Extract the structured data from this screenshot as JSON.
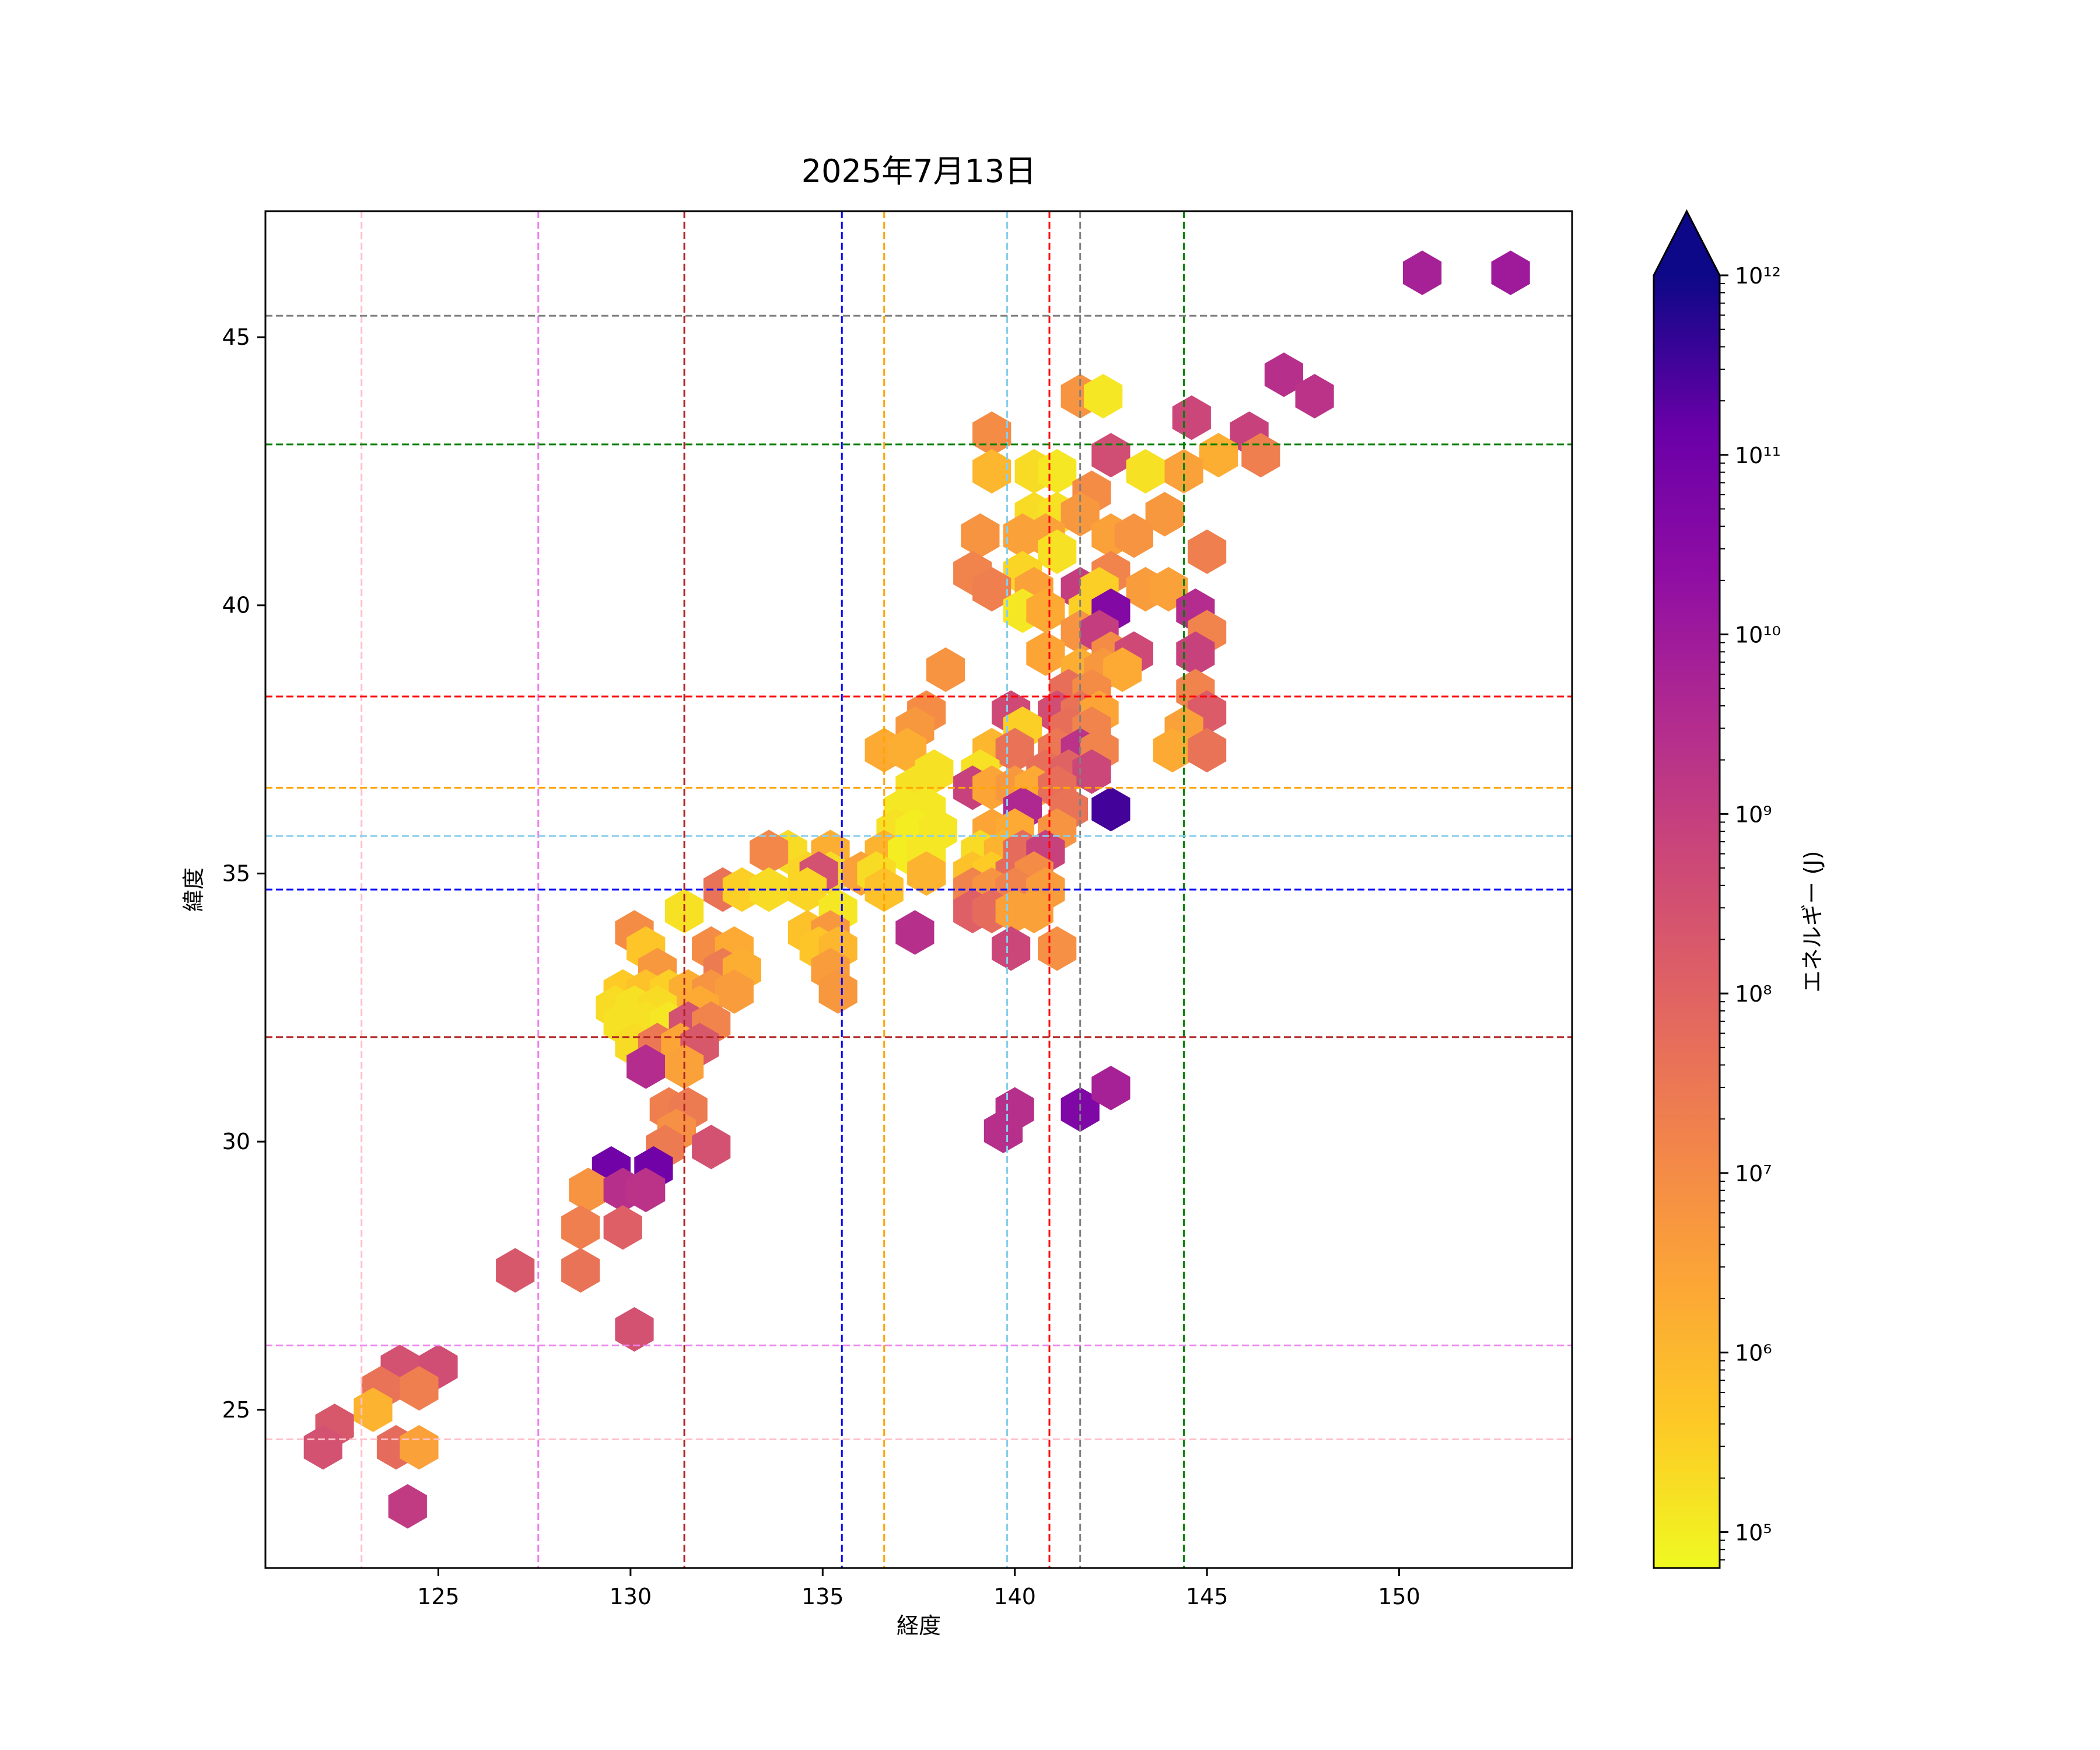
{
  "chart_data": {
    "type": "hexbin",
    "title": "2025年7月13日",
    "xlabel": "経度",
    "ylabel": "緯度",
    "xlim": [
      120.5,
      154.5
    ],
    "ylim": [
      22.05,
      47.35
    ],
    "xticks": [
      125,
      130,
      135,
      140,
      145,
      150
    ],
    "yticks": [
      25,
      30,
      35,
      40,
      45
    ],
    "colorbar": {
      "label": "エネルギー (J)",
      "scale": "log",
      "range_exp": [
        4.8,
        12.0
      ],
      "extend": "max",
      "ticks": [
        {
          "exp": 5,
          "label": "10⁵"
        },
        {
          "exp": 6,
          "label": "10⁶"
        },
        {
          "exp": 7,
          "label": "10⁷"
        },
        {
          "exp": 8,
          "label": "10⁸"
        },
        {
          "exp": 9,
          "label": "10⁹"
        },
        {
          "exp": 10,
          "label": "10¹⁰"
        },
        {
          "exp": 11,
          "label": "10¹¹"
        },
        {
          "exp": 12,
          "label": "10¹²"
        }
      ]
    },
    "reference_lines": {
      "vertical": [
        {
          "x": 123.0,
          "color": "#ffc0cb"
        },
        {
          "x": 127.6,
          "color": "#ee82ee"
        },
        {
          "x": 131.4,
          "color": "#b22222"
        },
        {
          "x": 135.5,
          "color": "#0000ff"
        },
        {
          "x": 136.6,
          "color": "#ffa500"
        },
        {
          "x": 139.8,
          "color": "#87ceeb"
        },
        {
          "x": 140.9,
          "color": "#ff0000"
        },
        {
          "x": 141.7,
          "color": "#808080"
        },
        {
          "x": 144.4,
          "color": "#008000"
        }
      ],
      "horizontal": [
        {
          "y": 45.4,
          "color": "#808080"
        },
        {
          "y": 43.0,
          "color": "#008000"
        },
        {
          "y": 38.3,
          "color": "#ff0000"
        },
        {
          "y": 36.6,
          "color": "#ffa500"
        },
        {
          "y": 35.7,
          "color": "#87ceeb"
        },
        {
          "y": 34.7,
          "color": "#0000ff"
        },
        {
          "y": 31.95,
          "color": "#b22222"
        },
        {
          "y": 26.2,
          "color": "#ee82ee"
        },
        {
          "y": 24.45,
          "color": "#ffc0cb"
        }
      ]
    },
    "hexbins": [
      [
        150.6,
        46.2,
        9.8
      ],
      [
        152.9,
        46.2,
        10.0
      ],
      [
        147.0,
        44.3,
        9.4
      ],
      [
        147.8,
        43.9,
        9.3
      ],
      [
        141.7,
        43.9,
        6.8
      ],
      [
        142.3,
        43.9,
        5.1
      ],
      [
        144.6,
        43.5,
        8.8
      ],
      [
        146.1,
        43.2,
        8.9
      ],
      [
        139.4,
        43.2,
        7.0
      ],
      [
        142.5,
        42.8,
        8.6
      ],
      [
        145.3,
        42.8,
        6.2
      ],
      [
        146.4,
        42.8,
        7.3
      ],
      [
        139.4,
        42.5,
        6.0
      ],
      [
        140.5,
        42.5,
        5.3
      ],
      [
        141.1,
        42.5,
        5.1
      ],
      [
        143.4,
        42.5,
        5.2
      ],
      [
        144.4,
        42.5,
        6.5
      ],
      [
        142.0,
        42.1,
        7.0
      ],
      [
        140.5,
        41.7,
        5.3
      ],
      [
        141.1,
        41.7,
        5.2
      ],
      [
        141.7,
        41.7,
        6.7
      ],
      [
        143.9,
        41.7,
        6.7
      ],
      [
        139.1,
        41.3,
        6.8
      ],
      [
        140.2,
        41.3,
        6.5
      ],
      [
        140.8,
        41.3,
        6.5
      ],
      [
        142.5,
        41.3,
        6.5
      ],
      [
        143.1,
        41.3,
        6.8
      ],
      [
        141.1,
        41.0,
        5.2
      ],
      [
        145.0,
        41.0,
        7.3
      ],
      [
        138.9,
        40.6,
        7.2
      ],
      [
        140.2,
        40.6,
        5.4
      ],
      [
        142.5,
        40.6,
        7.2
      ],
      [
        139.4,
        40.3,
        7.3
      ],
      [
        140.5,
        40.3,
        6.5
      ],
      [
        141.7,
        40.3,
        9.0
      ],
      [
        142.2,
        40.3,
        5.5
      ],
      [
        143.4,
        40.3,
        6.6
      ],
      [
        144.0,
        40.3,
        6.5
      ],
      [
        140.2,
        39.9,
        5.1
      ],
      [
        140.8,
        39.9,
        6.3
      ],
      [
        141.9,
        39.9,
        5.5
      ],
      [
        142.5,
        39.9,
        10.6
      ],
      [
        144.7,
        39.9,
        9.5
      ],
      [
        141.7,
        39.5,
        6.8
      ],
      [
        142.2,
        39.5,
        9.0
      ],
      [
        145.0,
        39.5,
        7.2
      ],
      [
        140.8,
        39.1,
        6.4
      ],
      [
        142.5,
        39.1,
        7.0
      ],
      [
        143.1,
        39.1,
        8.7
      ],
      [
        144.7,
        39.1,
        8.9
      ],
      [
        138.2,
        38.8,
        6.8
      ],
      [
        141.7,
        38.8,
        6.2
      ],
      [
        142.3,
        38.8,
        6.7
      ],
      [
        142.8,
        38.8,
        6.3
      ],
      [
        141.4,
        38.4,
        7.7
      ],
      [
        142.0,
        38.4,
        7.0
      ],
      [
        144.7,
        38.4,
        7.2
      ],
      [
        137.7,
        38.0,
        7.0
      ],
      [
        139.9,
        38.0,
        8.7
      ],
      [
        141.1,
        38.0,
        8.6
      ],
      [
        141.7,
        38.0,
        7.6
      ],
      [
        142.2,
        38.0,
        6.4
      ],
      [
        145.0,
        38.0,
        8.2
      ],
      [
        137.4,
        37.7,
        6.7
      ],
      [
        140.2,
        37.7,
        5.5
      ],
      [
        141.4,
        37.7,
        7.7
      ],
      [
        142.0,
        37.7,
        7.2
      ],
      [
        144.4,
        37.7,
        6.5
      ],
      [
        136.6,
        37.3,
        6.3
      ],
      [
        137.2,
        37.3,
        6.2
      ],
      [
        139.4,
        37.3,
        6.0
      ],
      [
        140.0,
        37.3,
        7.6
      ],
      [
        141.1,
        37.3,
        7.5
      ],
      [
        141.7,
        37.3,
        9.3
      ],
      [
        142.2,
        37.3,
        7.2
      ],
      [
        144.1,
        37.3,
        6.3
      ],
      [
        145.0,
        37.3,
        7.6
      ],
      [
        137.9,
        36.9,
        5.2
      ],
      [
        139.1,
        36.9,
        5.2
      ],
      [
        140.8,
        36.9,
        7.7
      ],
      [
        141.4,
        36.9,
        8.0
      ],
      [
        142.0,
        36.9,
        8.8
      ],
      [
        137.4,
        36.6,
        5.2
      ],
      [
        138.9,
        36.6,
        8.9
      ],
      [
        139.4,
        36.6,
        6.4
      ],
      [
        140.0,
        36.6,
        6.7
      ],
      [
        140.5,
        36.6,
        6.3
      ],
      [
        141.1,
        36.6,
        7.7
      ],
      [
        137.1,
        36.2,
        5.1
      ],
      [
        137.7,
        36.2,
        5.1
      ],
      [
        140.2,
        36.2,
        9.6
      ],
      [
        141.4,
        36.2,
        7.6
      ],
      [
        142.5,
        36.2,
        11.5
      ],
      [
        136.9,
        35.8,
        5.2
      ],
      [
        137.4,
        35.8,
        5.0
      ],
      [
        138.0,
        35.8,
        5.1
      ],
      [
        139.4,
        35.8,
        6.4
      ],
      [
        140.0,
        35.8,
        6.3
      ],
      [
        141.1,
        35.8,
        6.8
      ],
      [
        134.1,
        35.4,
        5.3
      ],
      [
        135.2,
        35.4,
        6.2
      ],
      [
        136.6,
        35.4,
        6.1
      ],
      [
        137.2,
        35.4,
        5.0
      ],
      [
        137.7,
        35.4,
        5.1
      ],
      [
        139.1,
        35.4,
        5.3
      ],
      [
        139.7,
        35.4,
        6.1
      ],
      [
        140.2,
        35.4,
        7.8
      ],
      [
        140.8,
        35.4,
        8.9
      ],
      [
        133.6,
        35.4,
        7.1
      ],
      [
        134.6,
        35.0,
        5.4
      ],
      [
        135.2,
        35.0,
        5.3
      ],
      [
        134.9,
        35.0,
        8.5
      ],
      [
        136.0,
        35.0,
        6.5
      ],
      [
        136.4,
        35.0,
        5.3
      ],
      [
        137.7,
        35.0,
        6.1
      ],
      [
        138.9,
        35.0,
        5.8
      ],
      [
        139.4,
        35.0,
        5.6
      ],
      [
        140.0,
        35.0,
        7.8
      ],
      [
        140.5,
        35.0,
        7.0
      ],
      [
        132.4,
        34.7,
        7.6
      ],
      [
        132.9,
        34.7,
        5.5
      ],
      [
        133.6,
        34.7,
        5.3
      ],
      [
        134.6,
        34.7,
        5.4
      ],
      [
        136.6,
        34.7,
        5.8
      ],
      [
        138.9,
        34.7,
        7.2
      ],
      [
        139.4,
        34.7,
        6.8
      ],
      [
        140.0,
        34.7,
        7.2
      ],
      [
        140.8,
        34.7,
        6.6
      ],
      [
        131.4,
        34.3,
        5.2
      ],
      [
        135.4,
        34.3,
        5.1
      ],
      [
        138.9,
        34.3,
        8.1
      ],
      [
        139.4,
        34.3,
        7.8
      ],
      [
        140.0,
        34.3,
        6.5
      ],
      [
        140.5,
        34.3,
        6.5
      ],
      [
        130.1,
        33.9,
        7.0
      ],
      [
        134.6,
        33.9,
        5.8
      ],
      [
        135.2,
        33.9,
        6.7
      ],
      [
        137.4,
        33.9,
        9.4
      ],
      [
        130.4,
        33.6,
        5.7
      ],
      [
        132.1,
        33.6,
        7.0
      ],
      [
        132.7,
        33.6,
        6.3
      ],
      [
        134.9,
        33.6,
        5.7
      ],
      [
        135.4,
        33.6,
        6.0
      ],
      [
        139.9,
        33.6,
        8.8
      ],
      [
        141.1,
        33.6,
        6.9
      ],
      [
        130.7,
        33.2,
        6.7
      ],
      [
        132.4,
        33.2,
        7.4
      ],
      [
        132.9,
        33.2,
        6.2
      ],
      [
        135.2,
        33.2,
        6.6
      ],
      [
        129.8,
        32.8,
        5.6
      ],
      [
        130.4,
        32.8,
        5.8
      ],
      [
        131.0,
        32.8,
        5.5
      ],
      [
        131.5,
        32.8,
        6.2
      ],
      [
        132.1,
        32.8,
        6.8
      ],
      [
        132.7,
        32.8,
        6.6
      ],
      [
        135.4,
        32.8,
        6.7
      ],
      [
        129.6,
        32.5,
        5.3
      ],
      [
        130.1,
        32.5,
        5.2
      ],
      [
        130.7,
        32.5,
        5.3
      ],
      [
        131.8,
        32.5,
        6.3
      ],
      [
        129.8,
        32.2,
        5.2
      ],
      [
        130.4,
        32.2,
        5.2
      ],
      [
        131.0,
        32.2,
        5.1
      ],
      [
        131.5,
        32.2,
        8.5
      ],
      [
        132.1,
        32.2,
        7.2
      ],
      [
        130.1,
        31.8,
        5.3
      ],
      [
        130.7,
        31.8,
        7.5
      ],
      [
        131.3,
        31.8,
        6.4
      ],
      [
        131.8,
        31.8,
        8.3
      ],
      [
        130.4,
        31.4,
        9.5
      ],
      [
        131.4,
        31.4,
        6.5
      ],
      [
        131.0,
        30.6,
        7.3
      ],
      [
        131.5,
        30.6,
        7.4
      ],
      [
        131.2,
        30.2,
        6.9
      ],
      [
        130.9,
        29.9,
        7.4
      ],
      [
        132.1,
        29.9,
        8.5
      ],
      [
        139.7,
        30.2,
        9.4
      ],
      [
        140.0,
        30.6,
        9.4
      ],
      [
        141.7,
        30.6,
        10.7
      ],
      [
        142.5,
        31.0,
        9.8
      ],
      [
        129.5,
        29.5,
        11.0
      ],
      [
        130.6,
        29.5,
        11.0
      ],
      [
        128.9,
        29.1,
        6.8
      ],
      [
        129.8,
        29.1,
        9.4
      ],
      [
        130.4,
        29.1,
        9.3
      ],
      [
        128.7,
        28.4,
        7.3
      ],
      [
        129.8,
        28.4,
        8.1
      ],
      [
        127.0,
        27.6,
        8.3
      ],
      [
        128.7,
        27.6,
        7.6
      ],
      [
        130.1,
        26.5,
        8.5
      ],
      [
        124.0,
        25.8,
        8.5
      ],
      [
        125.0,
        25.8,
        8.6
      ],
      [
        123.5,
        25.4,
        7.6
      ],
      [
        124.5,
        25.4,
        7.3
      ],
      [
        123.3,
        25.0,
        6.1
      ],
      [
        122.3,
        24.7,
        8.3
      ],
      [
        122.0,
        24.3,
        8.5
      ],
      [
        123.9,
        24.3,
        7.8
      ],
      [
        124.5,
        24.3,
        6.5
      ],
      [
        124.2,
        23.2,
        9.1
      ]
    ],
    "hex_size": 0.58
  }
}
